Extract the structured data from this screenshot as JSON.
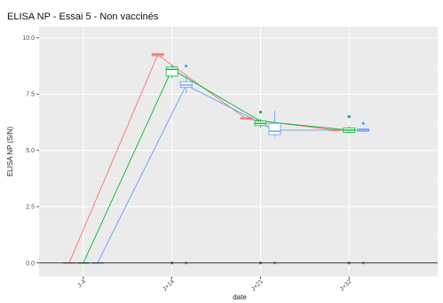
{
  "chart_data": {
    "type": "box",
    "title": "ELISA NP - Essai 5 - Non vaccinés",
    "xlabel": "date",
    "ylabel": "ELISA NP (S/N)",
    "categories": [
      "J-4",
      "J+14",
      "J+21",
      "J+32"
    ],
    "ylim": [
      -0.6,
      10.5
    ],
    "yticks": [
      0.0,
      2.5,
      5.0,
      7.5,
      10.0
    ],
    "ytick_labels": [
      "0.0",
      "2.5",
      "5.0",
      "7.5",
      "10.0"
    ],
    "grid": true,
    "legend": "none",
    "series": [
      {
        "color": "#F8766D",
        "boxes": [
          {
            "category": "J-4",
            "q1": 0.0,
            "median": 0.0,
            "q3": 0.0,
            "whisker_low": 0.0,
            "whisker_high": 0.0,
            "outliers": []
          },
          {
            "category": "J+14",
            "q1": 9.2,
            "median": 9.25,
            "q3": 9.3,
            "whisker_low": 9.15,
            "whisker_high": 9.35,
            "outliers": []
          },
          {
            "category": "J+21",
            "q1": 6.4,
            "median": 6.42,
            "q3": 6.45,
            "whisker_low": 6.38,
            "whisker_high": 6.47,
            "outliers": []
          },
          {
            "category": "J+32",
            "q1": 5.88,
            "median": 5.9,
            "q3": 5.92,
            "whisker_low": 5.86,
            "whisker_high": 5.94,
            "outliers": []
          }
        ],
        "mean_line": [
          0.0,
          9.25,
          6.4,
          5.9
        ]
      },
      {
        "color": "#00BA38",
        "boxes": [
          {
            "category": "J-4",
            "q1": 0.0,
            "median": 0.0,
            "q3": 0.0,
            "whisker_low": 0.0,
            "whisker_high": 0.0,
            "outliers": []
          },
          {
            "category": "J+14",
            "q1": 8.3,
            "median": 8.6,
            "q3": 8.7,
            "whisker_low": 8.2,
            "whisker_high": 8.8,
            "outliers": [
              0.0
            ]
          },
          {
            "category": "J+21",
            "q1": 6.1,
            "median": 6.2,
            "q3": 6.3,
            "whisker_low": 6.0,
            "whisker_high": 6.4,
            "outliers": [
              6.7,
              0.0
            ]
          },
          {
            "category": "J+32",
            "q1": 5.8,
            "median": 5.9,
            "q3": 6.0,
            "whisker_low": 5.75,
            "whisker_high": 6.05,
            "outliers": [
              6.5,
              0.0
            ]
          }
        ],
        "mean_line": [
          0.0,
          8.6,
          6.3,
          5.9
        ]
      },
      {
        "color": "#619CFF",
        "boxes": [
          {
            "category": "J-4",
            "q1": 0.0,
            "median": 0.0,
            "q3": 0.0,
            "whisker_low": 0.0,
            "whisker_high": 0.0,
            "outliers": []
          },
          {
            "category": "J+14",
            "q1": 7.8,
            "median": 7.9,
            "q3": 8.05,
            "whisker_low": 7.55,
            "whisker_high": 8.3,
            "outliers": [
              8.75,
              0.0
            ]
          },
          {
            "category": "J+21",
            "q1": 5.7,
            "median": 5.85,
            "q3": 6.2,
            "whisker_low": 5.6,
            "whisker_high": 6.75,
            "outliers": [
              0.0
            ]
          },
          {
            "category": "J+32",
            "q1": 5.85,
            "median": 5.9,
            "q3": 5.95,
            "whisker_low": 5.82,
            "whisker_high": 5.98,
            "outliers": [
              6.2,
              0.0
            ]
          }
        ],
        "mean_line": [
          0.0,
          7.9,
          5.9,
          5.9
        ]
      }
    ]
  }
}
